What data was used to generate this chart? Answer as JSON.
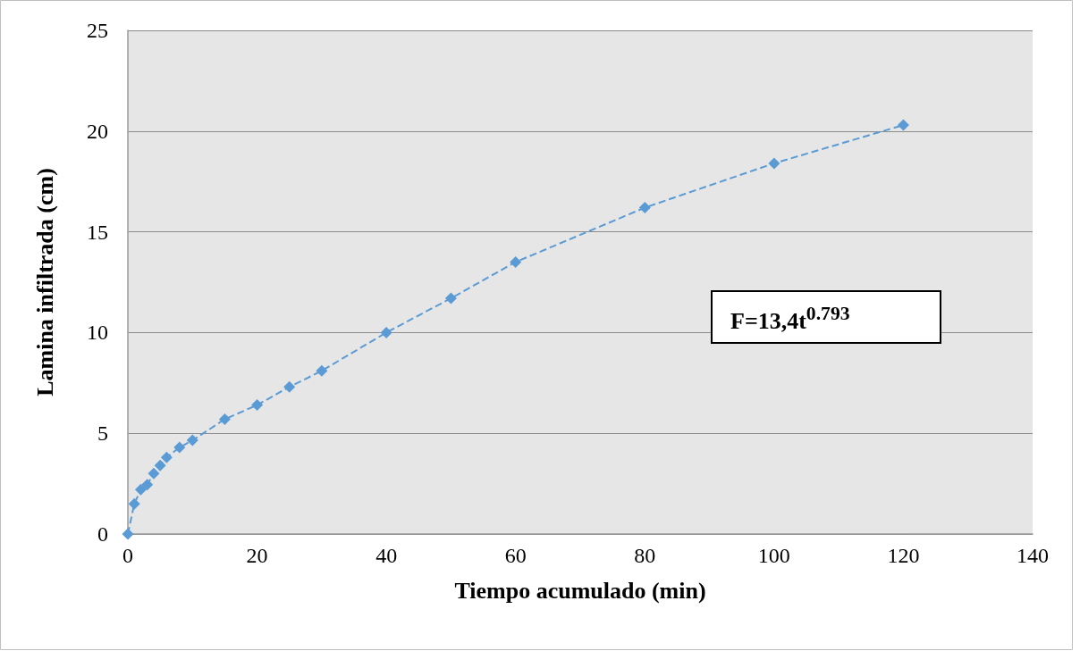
{
  "chart_data": {
    "type": "line",
    "xlabel": "Tiempo acumulado (min)",
    "ylabel": "Lamina infiltrada (cm)",
    "x": [
      0,
      1,
      2,
      3,
      4,
      5,
      6,
      8,
      10,
      15,
      20,
      25,
      30,
      40,
      50,
      60,
      80,
      100,
      120
    ],
    "series": [
      {
        "color": "#5b9bd5",
        "values": [
          0,
          1.5,
          2.2,
          2.45,
          3.0,
          3.4,
          3.8,
          4.3,
          4.65,
          5.7,
          6.4,
          7.3,
          8.1,
          10.0,
          11.7,
          13.5,
          16.2,
          18.4,
          20.3
        ]
      }
    ],
    "xlim": [
      0,
      140
    ],
    "xticks": [
      0,
      20,
      40,
      60,
      80,
      100,
      120,
      140
    ],
    "ylim": [
      0,
      25
    ],
    "yticks": [
      0,
      5,
      10,
      15,
      20,
      25
    ],
    "grid": "y",
    "marker": "diamond",
    "line_style": "dashed",
    "annotations": [
      "F=13,4t$^{0.793}$"
    ]
  }
}
